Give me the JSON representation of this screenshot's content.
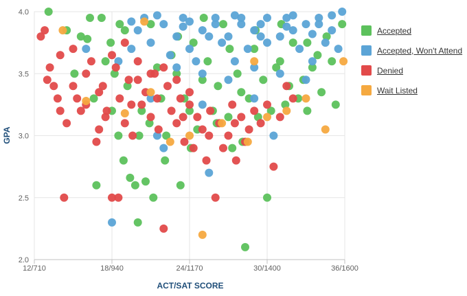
{
  "chart_data": {
    "type": "scatter",
    "xlabel": "ACT/SAT SCORE",
    "ylabel": "GPA",
    "xlim": [
      12,
      36
    ],
    "ylim": [
      2.0,
      4.0
    ],
    "x_ticks": [
      {
        "value": 12,
        "label": "12/710"
      },
      {
        "value": 18,
        "label": "18/940"
      },
      {
        "value": 24,
        "label": "24/1170"
      },
      {
        "value": 30,
        "label": "30/1400"
      },
      {
        "value": 36,
        "label": "36/1600"
      }
    ],
    "y_ticks": [
      {
        "value": 2.0,
        "label": "2.0"
      },
      {
        "value": 2.5,
        "label": "2.5"
      },
      {
        "value": 3.0,
        "label": "3.0"
      },
      {
        "value": 3.5,
        "label": "3.5"
      },
      {
        "value": 4.0,
        "label": "4.0"
      }
    ],
    "grid": true,
    "legend_position": "right",
    "series": [
      {
        "name": "Accepted",
        "color": "#5cc15c",
        "points": [
          [
            14.5,
            3.85
          ],
          [
            15.1,
            3.5
          ],
          [
            15.6,
            3.8
          ],
          [
            16.1,
            3.78
          ],
          [
            16.6,
            3.3
          ],
          [
            16.8,
            2.6
          ],
          [
            17.2,
            3.95
          ],
          [
            17.5,
            3.6
          ],
          [
            17.9,
            3.75
          ],
          [
            18.2,
            3.5
          ],
          [
            18.5,
            3.0
          ],
          [
            18.6,
            3.9
          ],
          [
            18.9,
            2.8
          ],
          [
            19.2,
            3.4
          ],
          [
            19.4,
            2.66
          ],
          [
            19.8,
            2.6
          ],
          [
            20.0,
            2.3
          ],
          [
            20.3,
            3.2
          ],
          [
            20.6,
            2.63
          ],
          [
            20.9,
            3.1
          ],
          [
            21.2,
            2.5
          ],
          [
            21.5,
            3.55
          ],
          [
            21.8,
            3.3
          ],
          [
            22.2,
            3.0
          ],
          [
            22.6,
            3.65
          ],
          [
            23.0,
            3.5
          ],
          [
            23.3,
            2.6
          ],
          [
            23.6,
            3.3
          ],
          [
            24.0,
            3.2
          ],
          [
            24.3,
            3.75
          ],
          [
            24.6,
            3.05
          ],
          [
            25.0,
            3.45
          ],
          [
            25.4,
            3.6
          ],
          [
            25.8,
            3.2
          ],
          [
            26.2,
            3.4
          ],
          [
            26.6,
            3.9
          ],
          [
            27.0,
            3.15
          ],
          [
            27.3,
            2.9
          ],
          [
            27.7,
            3.5
          ],
          [
            28.0,
            3.35
          ],
          [
            28.3,
            2.1
          ],
          [
            28.6,
            3.3
          ],
          [
            29.0,
            3.7
          ],
          [
            29.3,
            3.15
          ],
          [
            29.7,
            3.45
          ],
          [
            30.0,
            2.5
          ],
          [
            30.3,
            3.2
          ],
          [
            30.7,
            3.55
          ],
          [
            31.0,
            3.6
          ],
          [
            31.4,
            3.25
          ],
          [
            31.7,
            3.4
          ],
          [
            32.0,
            3.75
          ],
          [
            32.4,
            3.3
          ],
          [
            32.8,
            3.45
          ],
          [
            33.1,
            3.2
          ],
          [
            33.5,
            3.55
          ],
          [
            33.9,
            3.65
          ],
          [
            34.2,
            3.35
          ],
          [
            34.6,
            3.8
          ],
          [
            35.0,
            3.6
          ],
          [
            35.3,
            3.25
          ],
          [
            35.8,
            3.9
          ],
          [
            13.1,
            4.0
          ],
          [
            16.3,
            3.95
          ],
          [
            19.0,
            3.85
          ],
          [
            21.0,
            3.9
          ],
          [
            23.1,
            3.8
          ],
          [
            25.1,
            3.95
          ],
          [
            27.1,
            3.7
          ],
          [
            29.1,
            3.85
          ],
          [
            31.1,
            3.9
          ],
          [
            33.1,
            3.75
          ],
          [
            18.0,
            3.2
          ],
          [
            20.1,
            3.0
          ],
          [
            22.1,
            2.8
          ],
          [
            24.1,
            2.9
          ],
          [
            26.1,
            3.1
          ],
          [
            28.1,
            2.95
          ]
        ]
      },
      {
        "name": "Accepted, Won't Attend",
        "color": "#5ba4d6",
        "points": [
          [
            16.0,
            3.7
          ],
          [
            18.0,
            2.3
          ],
          [
            18.5,
            3.6
          ],
          [
            19.5,
            3.7
          ],
          [
            20.0,
            3.85
          ],
          [
            21.0,
            3.75
          ],
          [
            21.5,
            3.0
          ],
          [
            22.0,
            2.9
          ],
          [
            22.5,
            3.65
          ],
          [
            23.0,
            3.8
          ],
          [
            23.5,
            3.95
          ],
          [
            24.0,
            3.7
          ],
          [
            24.5,
            3.6
          ],
          [
            25.0,
            3.85
          ],
          [
            25.5,
            2.7
          ],
          [
            26.0,
            3.9
          ],
          [
            26.5,
            3.75
          ],
          [
            27.0,
            3.8
          ],
          [
            27.5,
            3.6
          ],
          [
            28.0,
            3.95
          ],
          [
            28.5,
            3.7
          ],
          [
            29.0,
            3.85
          ],
          [
            29.5,
            3.9
          ],
          [
            30.0,
            3.75
          ],
          [
            30.5,
            3.0
          ],
          [
            31.0,
            3.8
          ],
          [
            31.5,
            3.95
          ],
          [
            32.0,
            3.85
          ],
          [
            32.5,
            3.7
          ],
          [
            33.0,
            3.9
          ],
          [
            33.5,
            3.6
          ],
          [
            34.0,
            3.95
          ],
          [
            34.5,
            3.75
          ],
          [
            35.0,
            3.85
          ],
          [
            35.5,
            3.7
          ],
          [
            35.8,
            4.0
          ],
          [
            20.5,
            3.95
          ],
          [
            22.0,
            3.9
          ],
          [
            24.0,
            3.92
          ],
          [
            26.0,
            3.95
          ],
          [
            28.0,
            3.9
          ],
          [
            30.0,
            3.95
          ],
          [
            32.0,
            3.97
          ],
          [
            34.0,
            3.9
          ],
          [
            23.0,
            3.55
          ],
          [
            25.0,
            3.5
          ],
          [
            27.0,
            3.45
          ],
          [
            29.0,
            3.55
          ],
          [
            31.0,
            3.5
          ],
          [
            33.0,
            3.45
          ],
          [
            19.5,
            3.92
          ],
          [
            21.5,
            3.97
          ],
          [
            23.5,
            3.88
          ],
          [
            25.5,
            3.8
          ],
          [
            27.5,
            3.97
          ],
          [
            29.5,
            3.8
          ],
          [
            31.5,
            3.88
          ],
          [
            33.5,
            3.82
          ],
          [
            35.0,
            3.97
          ],
          [
            21.0,
            3.3
          ],
          [
            25.0,
            3.25
          ],
          [
            29.0,
            3.3
          ]
        ]
      },
      {
        "name": "Denied",
        "color": "#e24a4a",
        "points": [
          [
            12.5,
            3.8
          ],
          [
            12.8,
            3.85
          ],
          [
            13.2,
            3.55
          ],
          [
            13.5,
            3.4
          ],
          [
            13.8,
            3.3
          ],
          [
            14.0,
            3.2
          ],
          [
            14.3,
            2.5
          ],
          [
            14.5,
            3.1
          ],
          [
            15.0,
            3.4
          ],
          [
            15.3,
            3.3
          ],
          [
            15.6,
            3.2
          ],
          [
            16.0,
            3.5
          ],
          [
            16.4,
            3.6
          ],
          [
            16.8,
            2.95
          ],
          [
            17.0,
            3.05
          ],
          [
            17.3,
            3.4
          ],
          [
            17.6,
            3.2
          ],
          [
            18.0,
            2.5
          ],
          [
            18.3,
            3.55
          ],
          [
            18.6,
            3.3
          ],
          [
            19.0,
            3.1
          ],
          [
            19.3,
            3.45
          ],
          [
            19.6,
            3.0
          ],
          [
            20.0,
            3.6
          ],
          [
            20.3,
            3.25
          ],
          [
            20.6,
            3.35
          ],
          [
            21.0,
            3.15
          ],
          [
            21.3,
            3.5
          ],
          [
            21.6,
            3.05
          ],
          [
            22.0,
            2.25
          ],
          [
            22.3,
            3.4
          ],
          [
            22.6,
            3.2
          ],
          [
            23.0,
            3.1
          ],
          [
            23.3,
            3.3
          ],
          [
            23.6,
            2.95
          ],
          [
            24.0,
            3.25
          ],
          [
            24.3,
            2.9
          ],
          [
            24.6,
            3.15
          ],
          [
            25.0,
            3.05
          ],
          [
            25.3,
            2.8
          ],
          [
            25.6,
            3.2
          ],
          [
            26.0,
            2.5
          ],
          [
            26.3,
            3.1
          ],
          [
            26.6,
            2.9
          ],
          [
            27.0,
            3.0
          ],
          [
            27.3,
            3.25
          ],
          [
            27.6,
            2.8
          ],
          [
            28.0,
            3.15
          ],
          [
            28.3,
            2.95
          ],
          [
            28.6,
            3.05
          ],
          [
            29.0,
            3.2
          ],
          [
            29.5,
            3.1
          ],
          [
            30.0,
            3.25
          ],
          [
            30.5,
            2.75
          ],
          [
            31.0,
            3.15
          ],
          [
            31.5,
            3.4
          ],
          [
            32.0,
            3.3
          ],
          [
            13.0,
            3.45
          ],
          [
            14.0,
            3.65
          ],
          [
            15.0,
            3.7
          ],
          [
            16.0,
            3.25
          ],
          [
            17.0,
            3.35
          ],
          [
            18.0,
            3.65
          ],
          [
            19.0,
            3.75
          ],
          [
            20.0,
            3.45
          ],
          [
            21.0,
            3.5
          ],
          [
            22.0,
            3.55
          ],
          [
            23.0,
            3.45
          ],
          [
            24.0,
            3.35
          ],
          [
            17.5,
            3.15
          ],
          [
            19.5,
            3.25
          ],
          [
            21.5,
            3.3
          ],
          [
            23.5,
            3.15
          ],
          [
            25.5,
            3.0
          ],
          [
            27.5,
            3.1
          ],
          [
            18.5,
            2.5
          ]
        ]
      },
      {
        "name": "Wait Listed",
        "color": "#f5a940",
        "points": [
          [
            14.2,
            3.85
          ],
          [
            16.0,
            3.28
          ],
          [
            19.0,
            3.18
          ],
          [
            21.0,
            3.35
          ],
          [
            22.5,
            2.95
          ],
          [
            24.0,
            3.0
          ],
          [
            25.0,
            2.2
          ],
          [
            26.5,
            3.1
          ],
          [
            28.5,
            2.95
          ],
          [
            30.0,
            3.15
          ],
          [
            31.5,
            3.2
          ],
          [
            33.0,
            3.3
          ],
          [
            34.5,
            3.05
          ],
          [
            35.9,
            3.6
          ],
          [
            20.5,
            3.92
          ],
          [
            29.0,
            3.6
          ]
        ]
      }
    ]
  }
}
